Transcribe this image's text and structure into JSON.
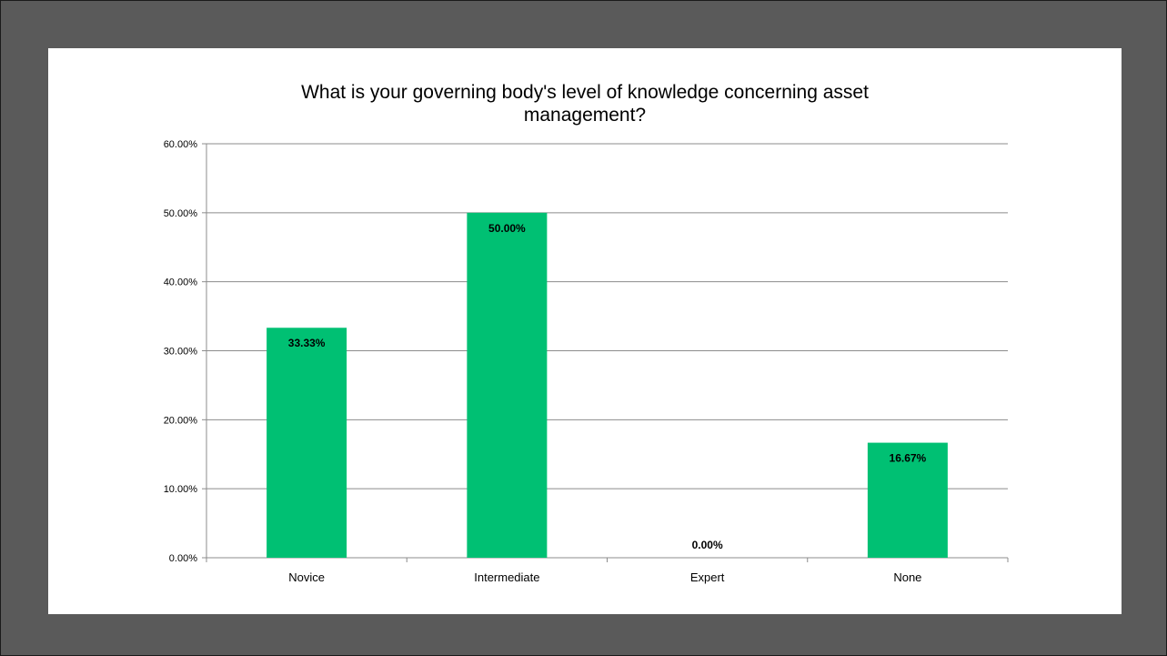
{
  "chart_data": {
    "type": "bar",
    "title_lines": [
      "What is your governing body's level of knowledge concerning asset",
      "management?"
    ],
    "categories": [
      "Novice",
      "Intermediate",
      "Expert",
      "None"
    ],
    "values": [
      33.33,
      50.0,
      0.0,
      16.67
    ],
    "data_labels": [
      "33.33%",
      "50.00%",
      "0.00%",
      "16.67%"
    ],
    "ylim": [
      0,
      60
    ],
    "yticks": [
      0,
      10,
      20,
      30,
      40,
      50,
      60
    ],
    "ytick_labels": [
      "0.00%",
      "10.00%",
      "20.00%",
      "30.00%",
      "40.00%",
      "50.00%",
      "60.00%"
    ],
    "xlabel": "",
    "ylabel": "",
    "grid": true,
    "legend": "none",
    "bar_color": "#00c073"
  }
}
